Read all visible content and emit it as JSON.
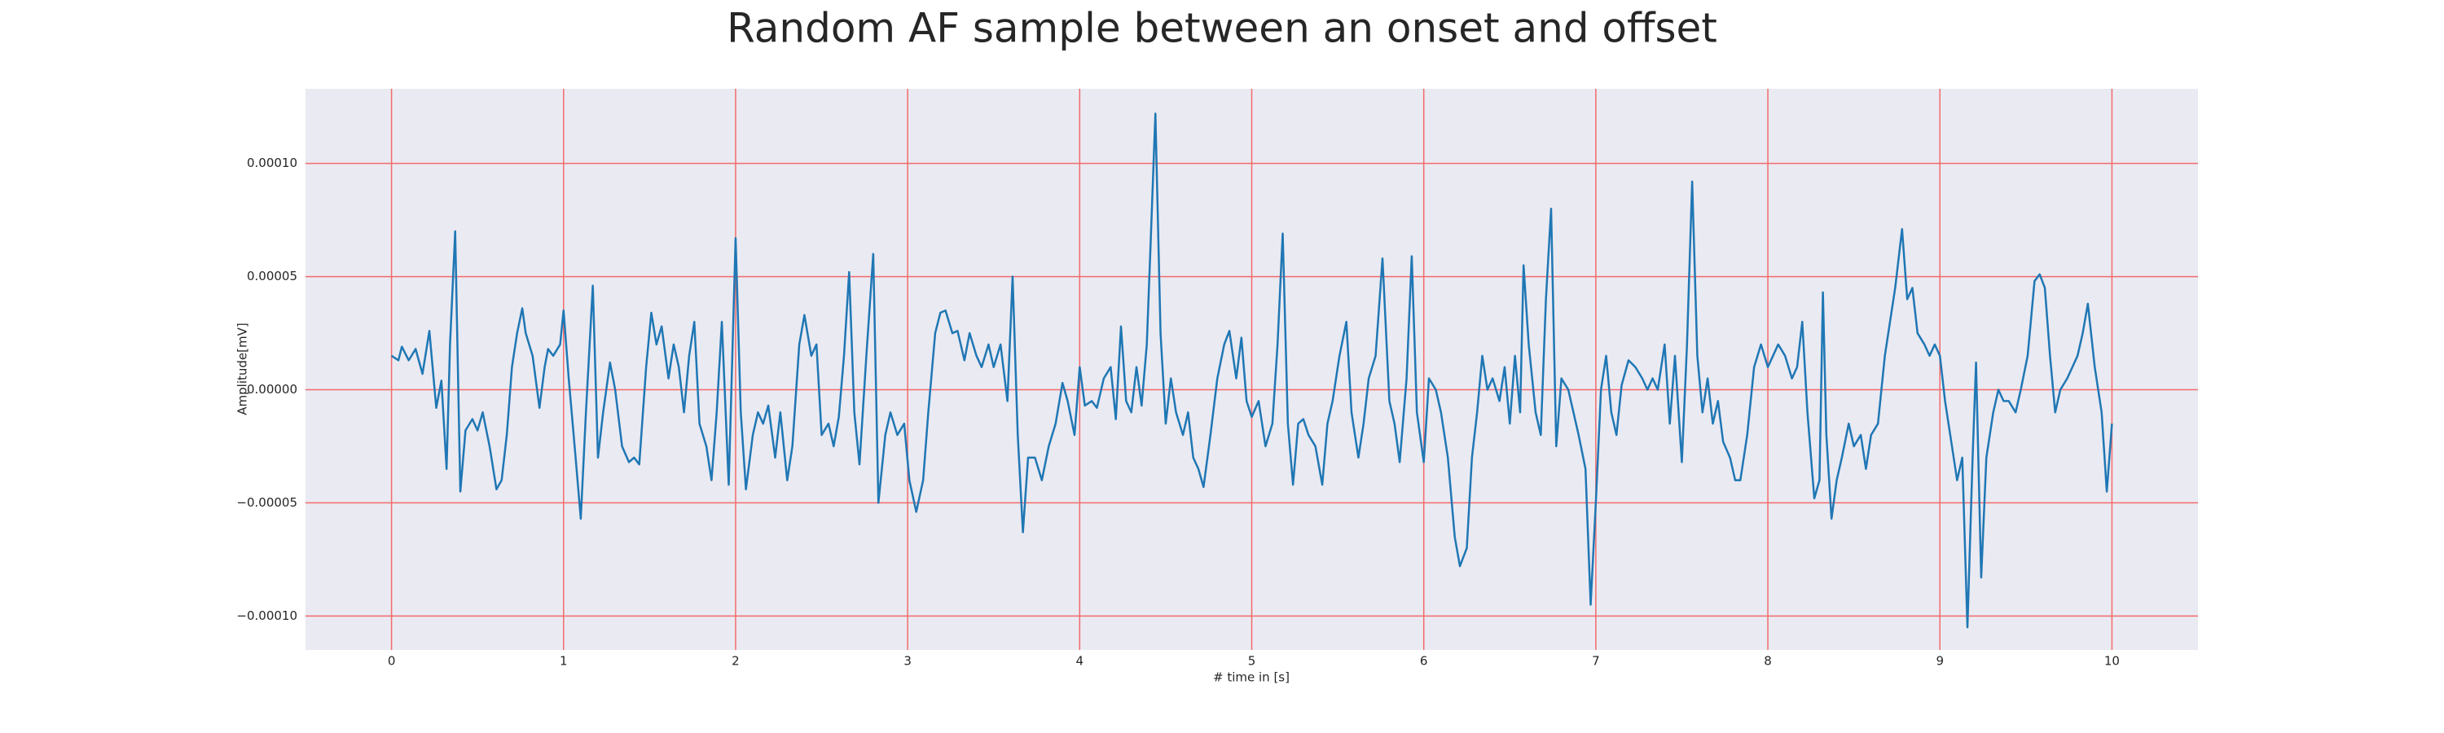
{
  "chart_data": {
    "type": "line",
    "title": "Random AF sample between an onset and offset",
    "x_label": "# time in [s]",
    "y_label": "Amplitude[mV]",
    "color": "#1f77b4",
    "grid": true,
    "grid_color": "#f26b6b",
    "xlim": [
      -0.5,
      10.5
    ],
    "xticks": [
      0,
      1,
      2,
      3,
      4,
      5,
      6,
      7,
      8,
      9,
      10
    ],
    "ylim": [
      -0.000115,
      0.000133
    ],
    "yticks": [
      {
        "value": -0.0001,
        "label": "−0.00010"
      },
      {
        "value": -5e-05,
        "label": "−0.00005"
      },
      {
        "value": 0,
        "label": "0.00000"
      },
      {
        "value": 5e-05,
        "label": "0.00005"
      },
      {
        "value": 0.0001,
        "label": "0.00010"
      }
    ],
    "x": [
      0.0,
      0.04,
      0.06,
      0.1,
      0.14,
      0.18,
      0.22,
      0.26,
      0.29,
      0.32,
      0.34,
      0.37,
      0.4,
      0.43,
      0.47,
      0.5,
      0.53,
      0.57,
      0.61,
      0.64,
      0.67,
      0.7,
      0.73,
      0.76,
      0.78,
      0.82,
      0.86,
      0.89,
      0.91,
      0.94,
      0.98,
      1.0,
      1.03,
      1.07,
      1.1,
      1.13,
      1.17,
      1.2,
      1.23,
      1.27,
      1.3,
      1.34,
      1.38,
      1.41,
      1.44,
      1.48,
      1.51,
      1.54,
      1.57,
      1.61,
      1.64,
      1.67,
      1.7,
      1.73,
      1.76,
      1.79,
      1.83,
      1.86,
      1.89,
      1.92,
      1.96,
      2.0,
      2.03,
      2.06,
      2.1,
      2.13,
      2.16,
      2.19,
      2.23,
      2.26,
      2.3,
      2.33,
      2.37,
      2.4,
      2.44,
      2.47,
      2.5,
      2.54,
      2.57,
      2.6,
      2.63,
      2.66,
      2.69,
      2.72,
      2.76,
      2.8,
      2.83,
      2.87,
      2.9,
      2.94,
      2.98,
      3.01,
      3.05,
      3.09,
      3.12,
      3.16,
      3.19,
      3.22,
      3.26,
      3.29,
      3.33,
      3.36,
      3.4,
      3.43,
      3.47,
      3.5,
      3.54,
      3.58,
      3.61,
      3.64,
      3.67,
      3.7,
      3.74,
      3.78,
      3.82,
      3.86,
      3.9,
      3.93,
      3.97,
      4.0,
      4.03,
      4.07,
      4.1,
      4.14,
      4.18,
      4.21,
      4.24,
      4.27,
      4.3,
      4.33,
      4.36,
      4.39,
      4.41,
      4.44,
      4.47,
      4.5,
      4.53,
      4.56,
      4.6,
      4.63,
      4.66,
      4.69,
      4.72,
      4.76,
      4.8,
      4.84,
      4.87,
      4.91,
      4.94,
      4.97,
      5.0,
      5.04,
      5.08,
      5.12,
      5.15,
      5.18,
      5.21,
      5.24,
      5.27,
      5.3,
      5.33,
      5.37,
      5.41,
      5.44,
      5.47,
      5.51,
      5.55,
      5.58,
      5.62,
      5.65,
      5.68,
      5.72,
      5.76,
      5.8,
      5.83,
      5.86,
      5.9,
      5.93,
      5.96,
      6.0,
      6.03,
      6.07,
      6.1,
      6.14,
      6.18,
      6.21,
      6.25,
      6.28,
      6.31,
      6.34,
      6.37,
      6.4,
      6.44,
      6.47,
      6.5,
      6.53,
      6.56,
      6.58,
      6.61,
      6.63,
      6.65,
      6.68,
      6.71,
      6.74,
      6.77,
      6.8,
      6.84,
      6.87,
      6.9,
      6.94,
      6.97,
      7.0,
      7.03,
      7.06,
      7.09,
      7.12,
      7.15,
      7.19,
      7.23,
      7.27,
      7.3,
      7.33,
      7.36,
      7.4,
      7.43,
      7.46,
      7.5,
      7.53,
      7.56,
      7.59,
      7.62,
      7.65,
      7.68,
      7.71,
      7.74,
      7.78,
      7.81,
      7.84,
      7.88,
      7.92,
      7.96,
      8.0,
      8.03,
      8.06,
      8.1,
      8.14,
      8.17,
      8.2,
      8.23,
      8.27,
      8.3,
      8.32,
      8.34,
      8.37,
      8.4,
      8.43,
      8.47,
      8.5,
      8.54,
      8.57,
      8.6,
      8.64,
      8.68,
      8.71,
      8.74,
      8.78,
      8.81,
      8.84,
      8.87,
      8.91,
      8.94,
      8.97,
      9.0,
      9.03,
      9.07,
      9.1,
      9.13,
      9.16,
      9.19,
      9.21,
      9.24,
      9.27,
      9.31,
      9.34,
      9.37,
      9.4,
      9.44,
      9.47,
      9.51,
      9.55,
      9.58,
      9.61,
      9.64,
      9.67,
      9.7,
      9.74,
      9.77,
      9.8,
      9.83,
      9.86,
      9.9,
      9.94,
      9.97,
      10.0
    ],
    "values": [
      1.5e-05,
      1.3e-05,
      1.9e-05,
      1.3e-05,
      1.8e-05,
      7e-06,
      2.6e-05,
      -8e-06,
      4e-06,
      -3.5e-05,
      2e-05,
      7e-05,
      -4.5e-05,
      -1.8e-05,
      -1.3e-05,
      -1.8e-05,
      -1e-05,
      -2.5e-05,
      -4.4e-05,
      -4e-05,
      -2e-05,
      1e-05,
      2.5e-05,
      3.6e-05,
      2.5e-05,
      1.5e-05,
      -8e-06,
      1e-05,
      1.8e-05,
      1.5e-05,
      2e-05,
      3.5e-05,
      5e-06,
      -3e-05,
      -5.7e-05,
      -1e-05,
      4.6e-05,
      -3e-05,
      -1e-05,
      1.2e-05,
      0,
      -2.5e-05,
      -3.2e-05,
      -3e-05,
      -3.3e-05,
      1e-05,
      3.4e-05,
      2e-05,
      2.8e-05,
      5e-06,
      2e-05,
      1e-05,
      -1e-05,
      1.5e-05,
      3e-05,
      -1.5e-05,
      -2.5e-05,
      -4e-05,
      -1e-05,
      3e-05,
      -4.2e-05,
      6.7e-05,
      -1e-05,
      -4.4e-05,
      -2e-05,
      -1e-05,
      -1.5e-05,
      -7e-06,
      -3e-05,
      -1e-05,
      -4e-05,
      -2.5e-05,
      2e-05,
      3.3e-05,
      1.5e-05,
      2e-05,
      -2e-05,
      -1.5e-05,
      -2.5e-05,
      -1.2e-05,
      1.5e-05,
      5.2e-05,
      -1e-05,
      -3.3e-05,
      1.5e-05,
      6e-05,
      -5e-05,
      -2e-05,
      -1e-05,
      -2e-05,
      -1.5e-05,
      -4e-05,
      -5.4e-05,
      -4e-05,
      -1e-05,
      2.5e-05,
      3.4e-05,
      3.5e-05,
      2.5e-05,
      2.6e-05,
      1.3e-05,
      2.5e-05,
      1.5e-05,
      1e-05,
      2e-05,
      1e-05,
      2e-05,
      -5e-06,
      5e-05,
      -2e-05,
      -6.3e-05,
      -3e-05,
      -3e-05,
      -4e-05,
      -2.5e-05,
      -1.5e-05,
      3e-06,
      -5e-06,
      -2e-05,
      1e-05,
      -7e-06,
      -5e-06,
      -8e-06,
      5e-06,
      1e-05,
      -1.3e-05,
      2.8e-05,
      -5e-06,
      -1e-05,
      1e-05,
      -7e-06,
      2e-05,
      6e-05,
      0.000122,
      2.5e-05,
      -1.5e-05,
      5e-06,
      -1e-05,
      -2e-05,
      -1e-05,
      -3e-05,
      -3.5e-05,
      -4.3e-05,
      -2e-05,
      5e-06,
      2e-05,
      2.6e-05,
      5e-06,
      2.3e-05,
      -5e-06,
      -1.2e-05,
      -5e-06,
      -2.5e-05,
      -1.5e-05,
      2e-05,
      6.9e-05,
      -1.5e-05,
      -4.2e-05,
      -1.5e-05,
      -1.3e-05,
      -2e-05,
      -2.5e-05,
      -4.2e-05,
      -1.5e-05,
      -5e-06,
      1.5e-05,
      3e-05,
      -1e-05,
      -3e-05,
      -1.5e-05,
      5e-06,
      1.5e-05,
      5.8e-05,
      -5e-06,
      -1.5e-05,
      -3.2e-05,
      5e-06,
      5.9e-05,
      -1e-05,
      -3.2e-05,
      5e-06,
      0,
      -1e-05,
      -3e-05,
      -6.5e-05,
      -7.8e-05,
      -7e-05,
      -3e-05,
      -1e-05,
      1.5e-05,
      0,
      5e-06,
      -5e-06,
      1e-05,
      -1.5e-05,
      1.5e-05,
      -1e-05,
      5.5e-05,
      2e-05,
      5e-06,
      -1e-05,
      -2e-05,
      4e-05,
      8e-05,
      -2.5e-05,
      5e-06,
      0,
      -1e-05,
      -2e-05,
      -3.5e-05,
      -9.5e-05,
      -5e-05,
      0,
      1.5e-05,
      -1e-05,
      -2e-05,
      2e-06,
      1.3e-05,
      1e-05,
      5e-06,
      0,
      5e-06,
      0,
      2e-05,
      -1.5e-05,
      1.5e-05,
      -3.2e-05,
      2e-05,
      9.2e-05,
      1.5e-05,
      -1e-05,
      5e-06,
      -1.5e-05,
      -5e-06,
      -2.3e-05,
      -3e-05,
      -4e-05,
      -4e-05,
      -2e-05,
      1e-05,
      2e-05,
      1e-05,
      1.5e-05,
      2e-05,
      1.5e-05,
      5e-06,
      1e-05,
      3e-05,
      -1e-05,
      -4.8e-05,
      -4e-05,
      4.3e-05,
      -2e-05,
      -5.7e-05,
      -4e-05,
      -3e-05,
      -1.5e-05,
      -2.5e-05,
      -2e-05,
      -3.5e-05,
      -2e-05,
      -1.5e-05,
      1.5e-05,
      3e-05,
      4.5e-05,
      7.1e-05,
      4e-05,
      4.5e-05,
      2.5e-05,
      2e-05,
      1.5e-05,
      2e-05,
      1.5e-05,
      -5e-06,
      -2.5e-05,
      -4e-05,
      -3e-05,
      -0.000105,
      -3e-05,
      1.2e-05,
      -8.3e-05,
      -3e-05,
      -1e-05,
      0,
      -5e-06,
      -5e-06,
      -1e-05,
      0,
      1.5e-05,
      4.8e-05,
      5.1e-05,
      4.5e-05,
      1.5e-05,
      -1e-05,
      0,
      5e-06,
      1e-05,
      1.5e-05,
      2.5e-05,
      3.8e-05,
      1e-05,
      -1e-05,
      -4.5e-05,
      -1.5e-05
    ]
  }
}
